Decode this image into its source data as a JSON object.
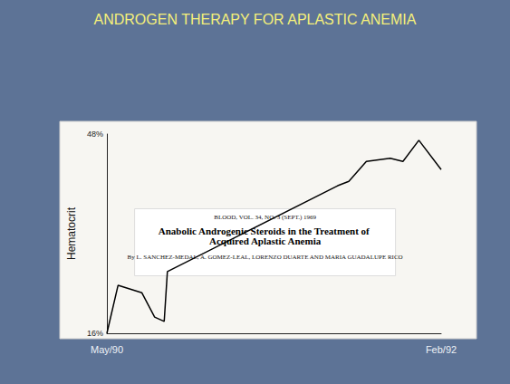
{
  "chart_data": {
    "type": "line",
    "title": "ANDROGEN THERAPY FOR APLASTIC ANEMIA",
    "y_label": "Hematocrit",
    "annotations": [
      "BLOOD, VOL. 34, NO. 3 (SEPT.) 1969",
      "Anabolic Androgenic Steroids in the Treatment of Acquired Aplastic Anemia",
      "By L. SANCHEZ-MEDAL, A. GOMEZ-LEAL, LORENZO DUARTE AND MARIA GUADALUPE RICO"
    ],
    "x": [
      0,
      0.7,
      2.2,
      3,
      3.6,
      3.8,
      14.5,
      15.2,
      16.3,
      17.8,
      18.6,
      19.6,
      21
    ],
    "values": [
      16,
      23.7,
      22.5,
      18.6,
      17.9,
      25.9,
      39.7,
      40.4,
      43.6,
      44.1,
      43.6,
      47,
      42.3
    ],
    "color": "#000000",
    "xlim": [
      0,
      21
    ],
    "xticks": [
      {
        "value": 0,
        "label": "May/90"
      },
      {
        "value": 21,
        "label": "Feb/92"
      }
    ],
    "ylim": [
      16,
      48
    ],
    "yticks": [
      {
        "value": 16,
        "label": "16%"
      },
      {
        "value": 48,
        "label": "48%"
      }
    ],
    "grid": false
  }
}
